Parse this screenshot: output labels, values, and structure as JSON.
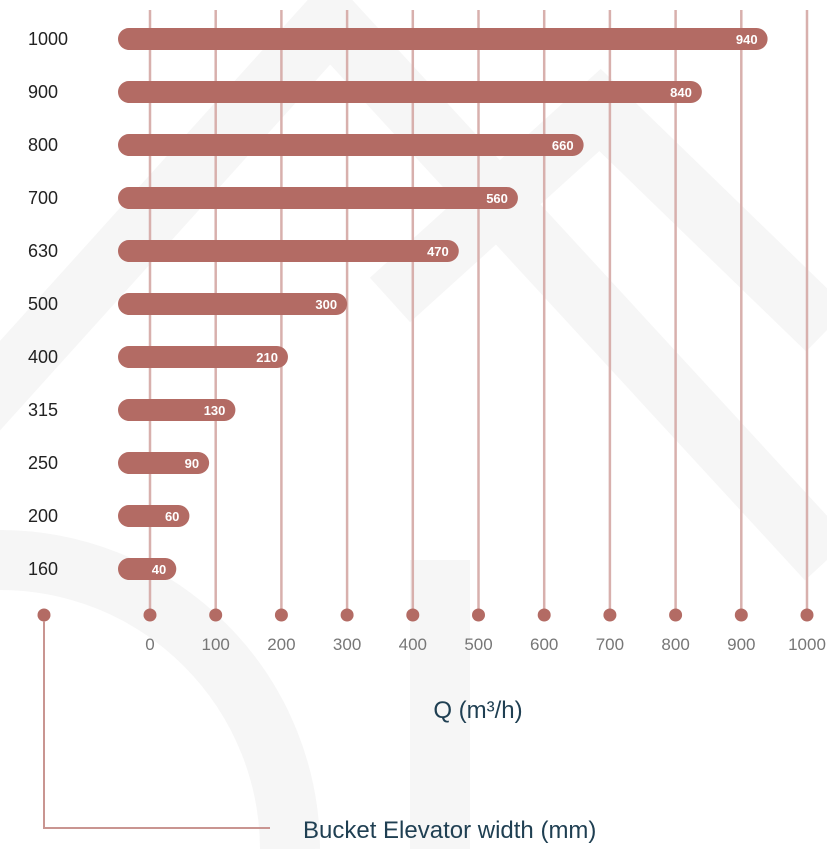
{
  "chart_data": {
    "type": "bar",
    "orientation": "horizontal",
    "categories": [
      "1000",
      "900",
      "800",
      "700",
      "630",
      "500",
      "400",
      "315",
      "250",
      "200",
      "160"
    ],
    "values": [
      940,
      840,
      660,
      560,
      470,
      300,
      210,
      130,
      90,
      60,
      40
    ],
    "x_ticks": [
      "0",
      "100",
      "200",
      "300",
      "400",
      "500",
      "600",
      "700",
      "800",
      "900",
      "1000"
    ],
    "xlim": [
      0,
      1000
    ],
    "xlabel": "Q (m³/h)",
    "ylabel": "Bucket Elevator width (mm)",
    "grid": true,
    "colors": {
      "bar": "#b36b64",
      "grid": "#d8b0ad",
      "title": "#1f3f52"
    }
  }
}
